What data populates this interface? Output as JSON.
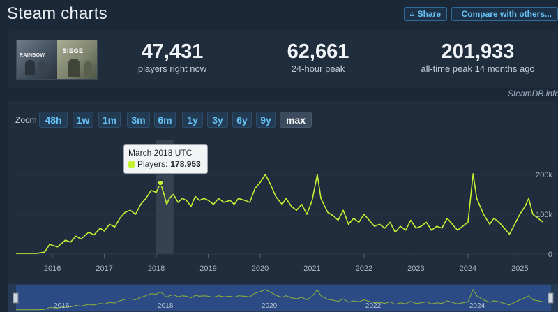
{
  "page": {
    "title": "Steam charts",
    "share_label": "Share",
    "compare_label": "Compare with others...",
    "watermark": "SteamDB.info"
  },
  "game_cover": {
    "left_text": "RAINBOW",
    "right_text": "SIEGE"
  },
  "stats": [
    {
      "value": "47,431",
      "label": "players right now"
    },
    {
      "value": "62,661",
      "label": "24-hour peak"
    },
    {
      "value": "201,933",
      "label": "all-time peak 14 months ago"
    }
  ],
  "zoom": {
    "label": "Zoom",
    "options": [
      "48h",
      "1w",
      "1m",
      "3m",
      "6m",
      "1y",
      "3y",
      "6y",
      "9y",
      "max"
    ],
    "selected": "max"
  },
  "tooltip": {
    "date": "March 2018 UTC",
    "series_label": "Players:",
    "value": "178,953"
  },
  "colors": {
    "background": "#1b2838",
    "panel": "#1f2d3d",
    "accent": "#67c1f5",
    "line": "#c3f233",
    "navigator": "#2e4c8a"
  },
  "chart_data": {
    "type": "line",
    "xlim": [
      2015.3,
      2025.6
    ],
    "ylim": [
      0,
      200000
    ],
    "x_ticks": [
      "2016",
      "2017",
      "2018",
      "2019",
      "2020",
      "2021",
      "2022",
      "2023",
      "2024",
      "2025"
    ],
    "x_tick_values": [
      2016,
      2017,
      2018,
      2019,
      2020,
      2021,
      2022,
      2023,
      2024,
      2025
    ],
    "y_ticks": [
      "0",
      "100k",
      "200k"
    ],
    "y_tick_values": [
      0,
      100000,
      200000
    ],
    "grid": true,
    "highlight_range": [
      2018.0,
      2018.33
    ],
    "series": [
      {
        "x": [
          2015.3,
          2015.7,
          2015.85,
          2015.95,
          2016.0,
          2016.1,
          2016.25,
          2016.35,
          2016.45,
          2016.55,
          2016.7,
          2016.8,
          2016.92,
          2017.0,
          2017.1,
          2017.2,
          2017.3,
          2017.4,
          2017.5,
          2017.6,
          2017.7,
          2017.8,
          2017.9,
          2018.0,
          2018.08,
          2018.15,
          2018.2,
          2018.25,
          2018.33,
          2018.42,
          2018.5,
          2018.58,
          2018.67,
          2018.75,
          2018.83,
          2018.92,
          2019.0,
          2019.1,
          2019.2,
          2019.3,
          2019.42,
          2019.5,
          2019.58,
          2019.7,
          2019.8,
          2019.9,
          2020.0,
          2020.1,
          2020.2,
          2020.3,
          2020.42,
          2020.5,
          2020.6,
          2020.7,
          2020.8,
          2020.9,
          2021.0,
          2021.1,
          2021.17,
          2021.3,
          2021.42,
          2021.5,
          2021.6,
          2021.7,
          2021.8,
          2021.9,
          2022.0,
          2022.1,
          2022.2,
          2022.3,
          2022.4,
          2022.5,
          2022.6,
          2022.7,
          2022.8,
          2022.9,
          2023.0,
          2023.1,
          2023.2,
          2023.3,
          2023.4,
          2023.5,
          2023.6,
          2023.7,
          2023.8,
          2023.9,
          2024.0,
          2024.1,
          2024.17,
          2024.3,
          2024.42,
          2024.5,
          2024.6,
          2024.7,
          2024.8,
          2024.9,
          2025.0,
          2025.1,
          2025.17,
          2025.25,
          2025.35,
          2025.45
        ],
        "values": [
          2000,
          2000,
          5000,
          25000,
          22000,
          18000,
          35000,
          30000,
          45000,
          38000,
          55000,
          48000,
          65000,
          58000,
          75000,
          68000,
          90000,
          105000,
          110000,
          100000,
          125000,
          140000,
          160000,
          155000,
          178953,
          150000,
          125000,
          140000,
          150000,
          130000,
          140000,
          135000,
          120000,
          145000,
          135000,
          140000,
          135000,
          125000,
          140000,
          130000,
          135000,
          125000,
          140000,
          135000,
          130000,
          165000,
          180000,
          200000,
          175000,
          145000,
          125000,
          140000,
          120000,
          110000,
          125000,
          100000,
          135000,
          200000,
          140000,
          105000,
          95000,
          85000,
          110000,
          75000,
          90000,
          80000,
          100000,
          85000,
          70000,
          75000,
          65000,
          80000,
          55000,
          70000,
          60000,
          85000,
          65000,
          70000,
          80000,
          60000,
          70000,
          65000,
          90000,
          75000,
          60000,
          70000,
          80000,
          201933,
          140000,
          100000,
          75000,
          90000,
          80000,
          65000,
          50000,
          75000,
          100000,
          120000,
          140000,
          100000,
          90000,
          80000
        ]
      }
    ]
  }
}
